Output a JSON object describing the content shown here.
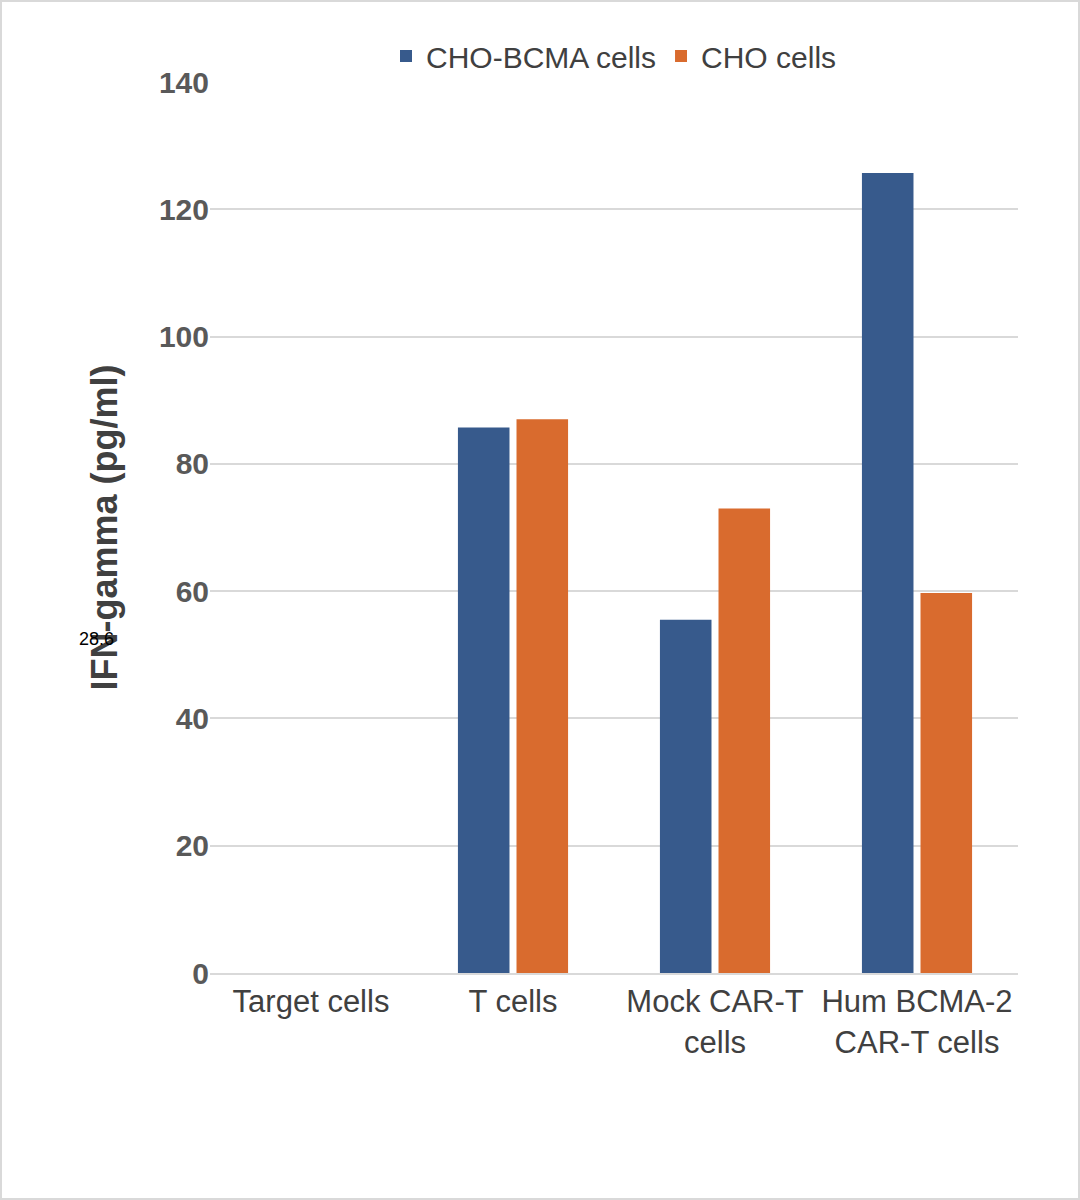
{
  "chart_data": {
    "type": "bar",
    "y_label": "IFN-gamma (pg/ml)",
    "categories": [
      "Target cells",
      "T cells",
      "Mock CAR-T cells",
      "Hum BCMA-2 CAR-T cells"
    ],
    "series": [
      {
        "name": "CHO-BCMA cells",
        "color": "#375a8c",
        "values": [
          0,
          85.7,
          55.5,
          125.7
        ]
      },
      {
        "name": "CHO cells",
        "color": "#d96b2e",
        "values": [
          0,
          87,
          73,
          59.7
        ]
      }
    ],
    "ylim": [
      0,
      140
    ],
    "yticks": [
      0,
      20,
      40,
      60,
      80,
      100,
      120,
      140
    ],
    "grid": true,
    "legend": "top",
    "annotations": [
      "28.6"
    ]
  }
}
